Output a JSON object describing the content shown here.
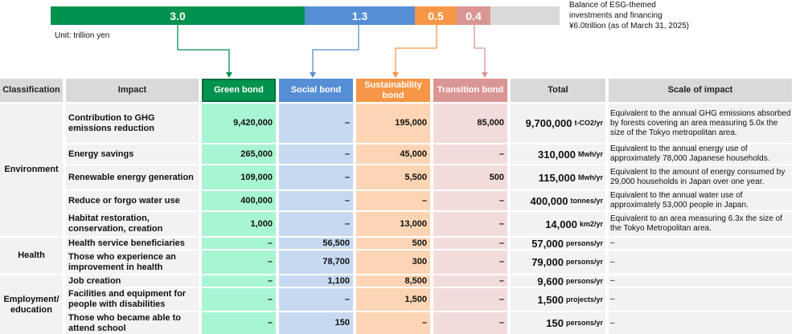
{
  "bar": {
    "segments": [
      {
        "label": "3.0",
        "value": 3.0,
        "color": "#00934f"
      },
      {
        "label": "1.3",
        "value": 1.3,
        "color": "#558ed5"
      },
      {
        "label": "0.5",
        "value": 0.5,
        "color": "#f79646"
      },
      {
        "label": "0.4",
        "value": 0.4,
        "color": "#da9694"
      }
    ],
    "remainder_color": "#d9d9d9"
  },
  "unit": "Unit: trillion yen",
  "balance": [
    "Balance of ESG-themed",
    "investments and financing",
    "¥6.0trillion (as of March 31, 2025)"
  ],
  "headers": [
    "Classification",
    "Impact",
    "Green bond",
    "Social bond",
    "Sustainability bond",
    "Transition bond",
    "Total",
    "Scale of impact"
  ],
  "groups": [
    {
      "name": "Environment",
      "rows": [
        {
          "impact": "Contribution to GHG emissions reduction",
          "green": "9,420,000",
          "social": "–",
          "sustain": "195,000",
          "transition": "85,000",
          "total": "9,700,000",
          "unit": "t-CO2/yr",
          "scale": "Equivalent to the annual GHG emissions absorbed by forests covering an area measuring 5.0x the size of the Tokyo metropolitan area."
        },
        {
          "impact": "Energy savings",
          "green": "265,000",
          "social": "–",
          "sustain": "45,000",
          "transition": "–",
          "total": "310,000",
          "unit": "Mwh/yr",
          "scale": "Equivalent to the annual energy use of approximately 78,000 Japanese households."
        },
        {
          "impact": "Renewable energy generation",
          "green": "109,000",
          "social": "–",
          "sustain": "5,500",
          "transition": "500",
          "total": "115,000",
          "unit": "Mwh/yr",
          "scale": "Equivalent to the amount of energy consumed by 29,000 households in Japan over one year."
        },
        {
          "impact": "Reduce or forgo water use",
          "green": "400,000",
          "social": "–",
          "sustain": "–",
          "transition": "–",
          "total": "400,000",
          "unit": "tonnes/yr",
          "scale": "Equivalent to the annual water use of approximately 53,000 people in Japan."
        },
        {
          "impact": "Habitat restoration, conservation, creation",
          "green": "1,000",
          "social": "–",
          "sustain": "13,000",
          "transition": "–",
          "total": "14,000",
          "unit": "km2/yr",
          "scale": "Equivalent to an area measuring 6.3x the size of the Tokyo Metropolitan area."
        }
      ]
    },
    {
      "name": "Health",
      "rows": [
        {
          "impact": "Health service beneficiaries",
          "green": "–",
          "social": "56,500",
          "sustain": "500",
          "transition": "–",
          "total": "57,000",
          "unit": "persons/yr",
          "scale": "–"
        },
        {
          "impact": "Those who experience an improvement in health",
          "green": "–",
          "social": "78,700",
          "sustain": "300",
          "transition": "–",
          "total": "79,000",
          "unit": "persons/yr",
          "scale": "–"
        }
      ]
    },
    {
      "name": "Employment/ education",
      "rows": [
        {
          "impact": "Job creation",
          "green": "–",
          "social": "1,100",
          "sustain": "8,500",
          "transition": "–",
          "total": "9,600",
          "unit": "persons/yr",
          "scale": "–"
        },
        {
          "impact": "Facilities and equipment for people with disabilities",
          "green": "–",
          "social": "–",
          "sustain": "1,500",
          "transition": "–",
          "total": "1,500",
          "unit": "projects/yr",
          "scale": "–"
        },
        {
          "impact": "Those who became able to attend school",
          "green": "–",
          "social": "150",
          "sustain": "–",
          "transition": "–",
          "total": "150",
          "unit": "persons/yr",
          "scale": "–"
        }
      ]
    }
  ]
}
